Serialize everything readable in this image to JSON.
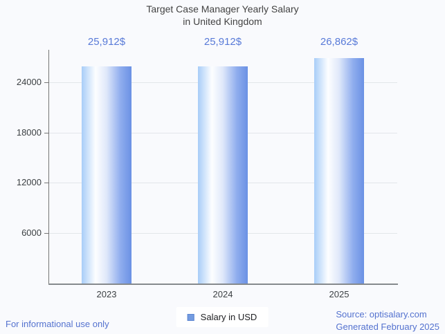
{
  "title": {
    "line1": "Target Case Manager Yearly Salary",
    "line2": "in United Kingdom"
  },
  "chart_data": {
    "type": "bar",
    "categories": [
      "2023",
      "2024",
      "2025"
    ],
    "series": [
      {
        "name": "Salary in USD",
        "values": [
          25912,
          25912,
          26862
        ]
      }
    ],
    "value_labels": [
      "25,912$",
      "25,912$",
      "26,862$"
    ],
    "title": "Target Case Manager Yearly Salary in United Kingdom",
    "xlabel": "",
    "ylabel": "",
    "ylim": [
      0,
      27870
    ],
    "yticks": [
      6000,
      12000,
      18000,
      24000
    ],
    "grid": true,
    "legend_position": "bottom"
  },
  "legend": {
    "label": "Salary in USD"
  },
  "footer": {
    "left": "For informational use only",
    "source_line1": "Source: optisalary.com",
    "source_line2": "Generated February 2025"
  },
  "colors": {
    "background": "#f9fafd",
    "title_text": "#424242",
    "value_label_text": "#587ad8",
    "footer_text": "#5472cf",
    "axis": "#757575",
    "gridline": "#e3e6ea",
    "bar_gradient_left": "#a8cdf8",
    "bar_gradient_mid": "#ffffff",
    "bar_gradient_right": "#6b91e4",
    "legend_marker": "#739be0"
  }
}
